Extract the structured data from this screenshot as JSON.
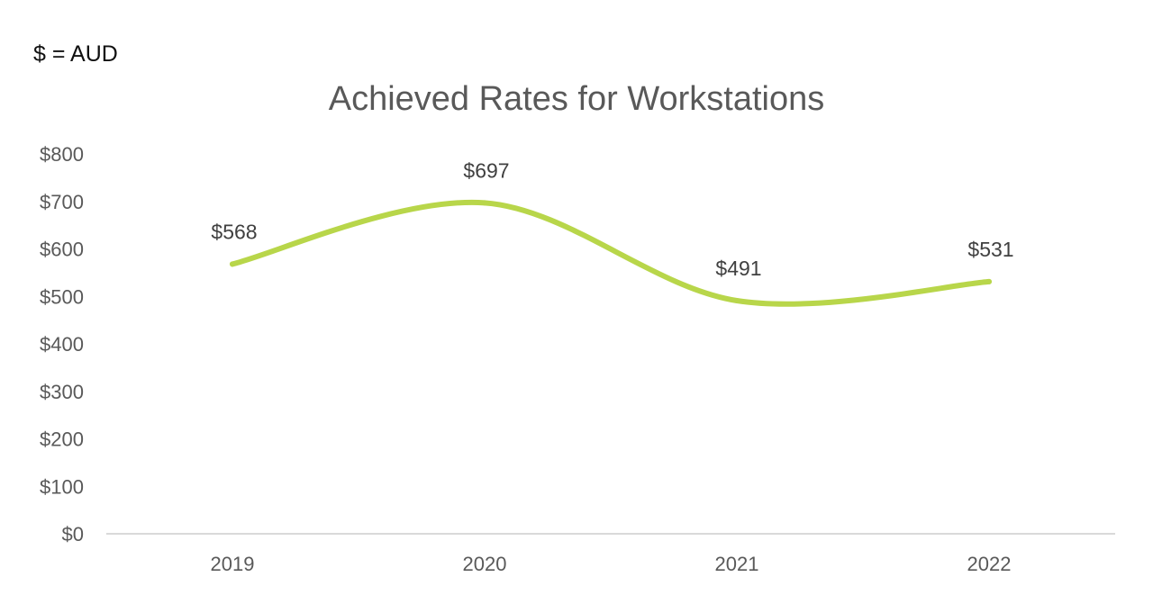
{
  "note": "$ = AUD",
  "chart_data": {
    "type": "line",
    "title": "Achieved Rates for Workstations",
    "categories": [
      "2019",
      "2020",
      "2021",
      "2022"
    ],
    "series": [
      {
        "values": [
          568,
          697,
          491,
          531
        ],
        "color": "#b8d64a"
      }
    ],
    "data_labels": [
      "$568",
      "$697",
      "$491",
      "$531"
    ],
    "y_ticks": [
      "$0",
      "$100",
      "$200",
      "$300",
      "$400",
      "$500",
      "$600",
      "$700",
      "$800"
    ],
    "ylim": [
      0,
      800
    ],
    "smooth": true,
    "grid": false,
    "legend": "none"
  }
}
